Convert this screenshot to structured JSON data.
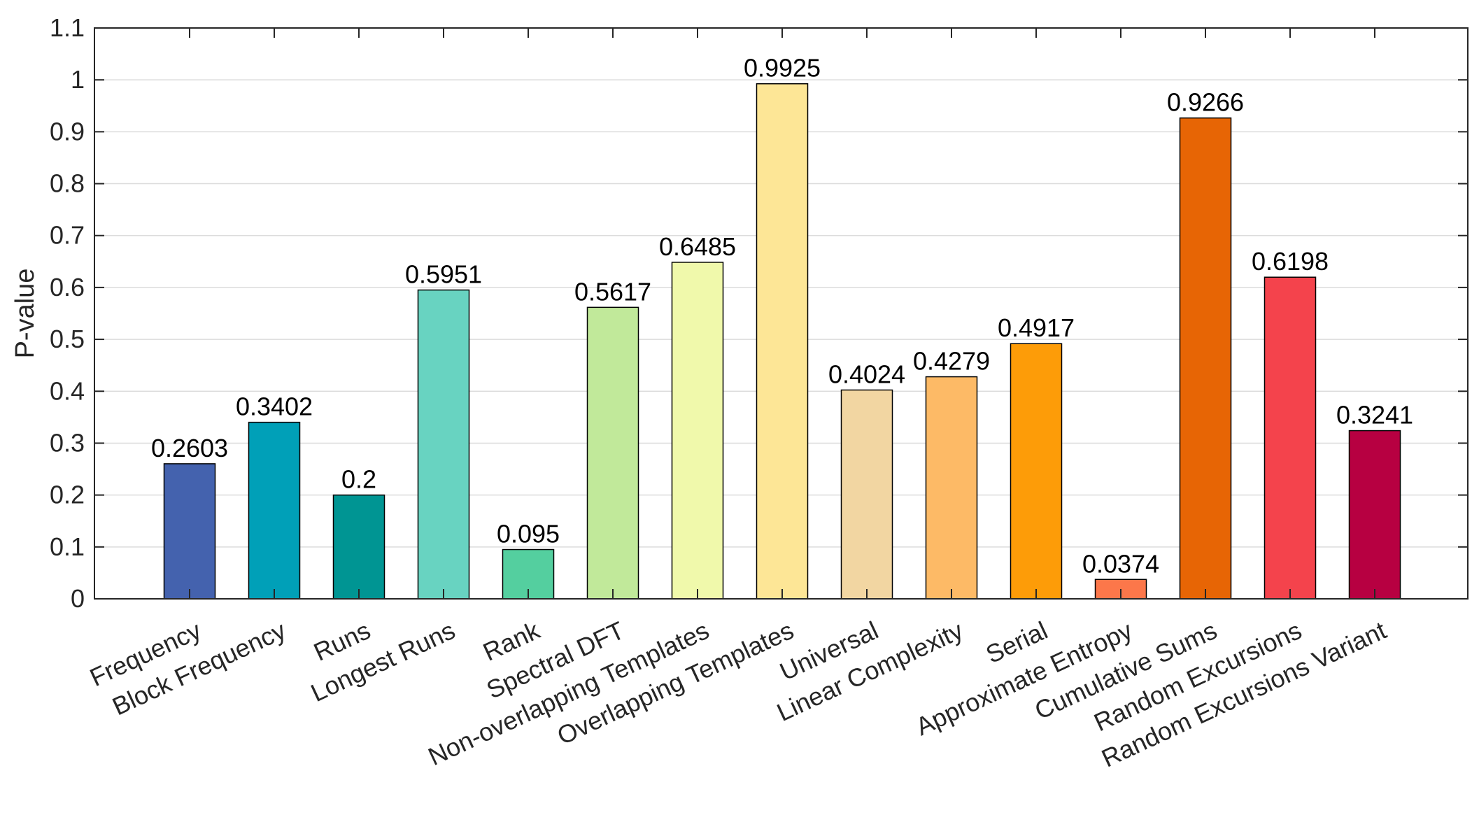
{
  "chart_data": {
    "type": "bar",
    "title": "",
    "xlabel": "",
    "ylabel": "P-value",
    "ylim": [
      0,
      1.1
    ],
    "yticks": [
      "0",
      "0.1",
      "0.2",
      "0.3",
      "0.4",
      "0.5",
      "0.6",
      "0.7",
      "0.8",
      "0.9",
      "1",
      "1.1"
    ],
    "grid": "y",
    "categories": [
      "Frequency",
      "Block Frequency",
      "Runs",
      "Longest Runs",
      "Rank",
      "Spectral DFT",
      "Non-overlapping Templates",
      "Overlapping Templates",
      "Universal",
      "Linear Complexity",
      "Serial",
      "Approximate Entropy",
      "Cumulative Sums",
      "Random Excursions",
      "Random Excursions Variant"
    ],
    "values": [
      0.2603,
      0.3402,
      0.2,
      0.5951,
      0.095,
      0.5617,
      0.6485,
      0.9925,
      0.4024,
      0.4279,
      0.4917,
      0.0374,
      0.9266,
      0.6198,
      0.3241
    ],
    "value_labels": [
      "0.2603",
      "0.3402",
      "0.2",
      "0.5951",
      "0.095",
      "0.5617",
      "0.6485",
      "0.9925",
      "0.4024",
      "0.4279",
      "0.4917",
      "0.0374",
      "0.9266",
      "0.6198",
      "0.3241"
    ],
    "colors": [
      "#4462ae",
      "#00a0b8",
      "#009593",
      "#68d3c1",
      "#54cf9f",
      "#c1e99a",
      "#f0f9ab",
      "#fde696",
      "#f2d6a2",
      "#fdba66",
      "#fd9c08",
      "#fc774a",
      "#e76505",
      "#f4434c",
      "#b70041"
    ]
  }
}
